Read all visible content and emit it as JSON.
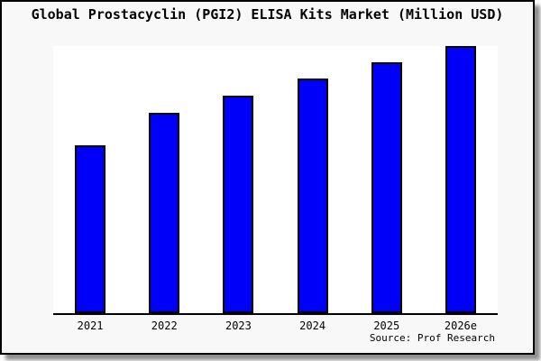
{
  "chart_data": {
    "type": "bar",
    "title": "Global Prostacyclin (PGI2) ELISA Kits Market (Million USD)",
    "categories": [
      "2021",
      "2022",
      "2023",
      "2024",
      "2025",
      "2026e"
    ],
    "values": [
      62.7,
      75.0,
      81.3,
      87.7,
      93.8,
      100.0
    ],
    "values_note": "No y-axis scale is printed on the chart; values are relative bar heights normalized so 2026e = 100",
    "xlabel": "",
    "ylabel": "",
    "ylim": [
      0,
      100
    ],
    "grid": false,
    "legend": false,
    "y_axis_visible": false,
    "colors": {
      "bar_fill": "#0000fa",
      "bar_edge": "#000000",
      "plot_bg": "#ffffff",
      "frame_bg": "#f8f8f8",
      "frame_border": "#000000",
      "shadow": "#8f8f8f",
      "text": "#000000"
    }
  },
  "footer": {
    "source_label": "Source: Prof Research"
  }
}
